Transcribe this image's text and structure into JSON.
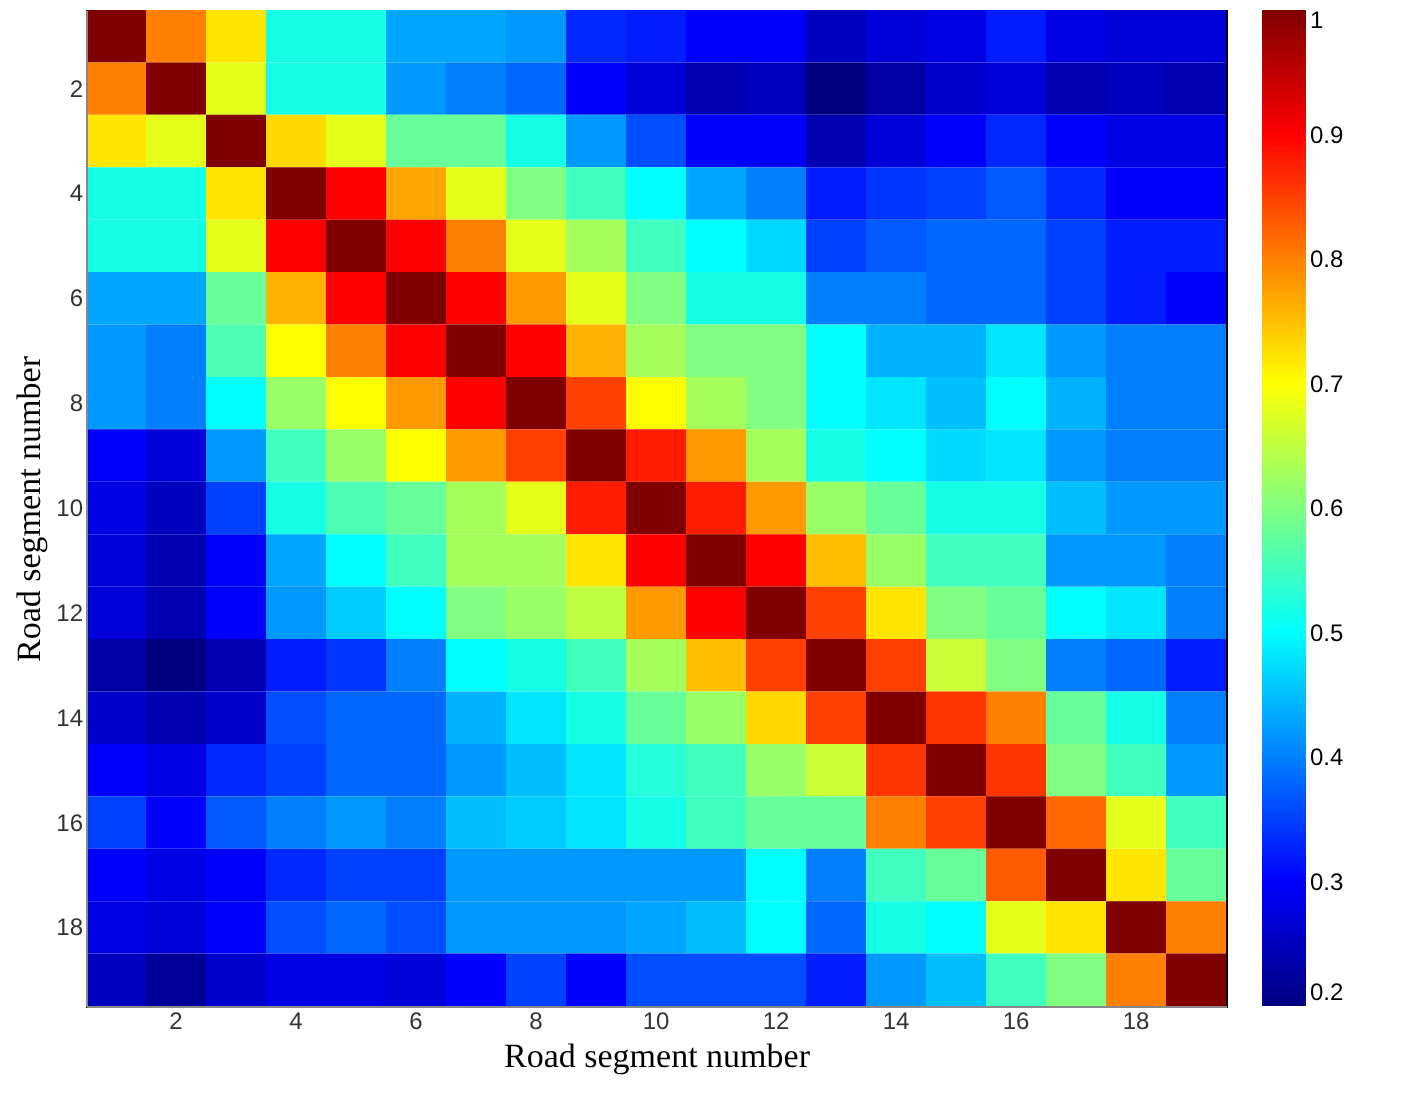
{
  "chart_data": {
    "type": "heatmap",
    "xlabel": "Road segment number",
    "ylabel": "Road segment number",
    "categories": [
      null,
      "2",
      null,
      "4",
      null,
      "6",
      null,
      "8",
      null,
      "10",
      null,
      "12",
      null,
      "14",
      null,
      "16",
      null,
      "18",
      null
    ],
    "y_categories": [
      null,
      "2",
      null,
      "4",
      null,
      "6",
      null,
      "8",
      null,
      "10",
      null,
      "12",
      null,
      "14",
      null,
      "16",
      null,
      "18",
      null
    ],
    "cells": [
      [
        1,
        0.8,
        0.72,
        0.52,
        0.52,
        0.43,
        0.43,
        0.42,
        0.33,
        0.32,
        0.3,
        0.3,
        0.25,
        0.27,
        0.28,
        0.32,
        0.28,
        0.27,
        0.27
      ],
      [
        0.8,
        1,
        0.68,
        0.52,
        0.52,
        0.42,
        0.4,
        0.38,
        0.3,
        0.27,
        0.24,
        0.25,
        0.2,
        0.23,
        0.26,
        0.27,
        0.24,
        0.25,
        0.24
      ],
      [
        0.72,
        0.68,
        1,
        0.73,
        0.68,
        0.58,
        0.58,
        0.52,
        0.42,
        0.36,
        0.3,
        0.3,
        0.24,
        0.27,
        0.3,
        0.33,
        0.3,
        0.28,
        0.28
      ],
      [
        0.52,
        0.52,
        0.72,
        1,
        0.9,
        0.77,
        0.68,
        0.6,
        0.55,
        0.5,
        0.43,
        0.4,
        0.32,
        0.34,
        0.35,
        0.37,
        0.33,
        0.3,
        0.3
      ],
      [
        0.52,
        0.52,
        0.68,
        0.9,
        1,
        0.9,
        0.8,
        0.68,
        0.63,
        0.55,
        0.5,
        0.47,
        0.35,
        0.37,
        0.38,
        0.38,
        0.35,
        0.32,
        0.32
      ],
      [
        0.43,
        0.43,
        0.58,
        0.76,
        0.9,
        1,
        0.9,
        0.78,
        0.68,
        0.6,
        0.52,
        0.52,
        0.4,
        0.4,
        0.38,
        0.38,
        0.35,
        0.32,
        0.3
      ],
      [
        0.42,
        0.4,
        0.56,
        0.7,
        0.8,
        0.9,
        1,
        0.9,
        0.76,
        0.63,
        0.6,
        0.6,
        0.5,
        0.44,
        0.44,
        0.48,
        0.42,
        0.4,
        0.4
      ],
      [
        0.42,
        0.4,
        0.5,
        0.62,
        0.7,
        0.78,
        0.9,
        1,
        0.85,
        0.7,
        0.63,
        0.6,
        0.5,
        0.48,
        0.45,
        0.5,
        0.44,
        0.4,
        0.4
      ],
      [
        0.3,
        0.27,
        0.42,
        0.55,
        0.62,
        0.7,
        0.78,
        0.85,
        1,
        0.88,
        0.78,
        0.63,
        0.52,
        0.5,
        0.47,
        0.48,
        0.42,
        0.4,
        0.4
      ],
      [
        0.28,
        0.25,
        0.35,
        0.52,
        0.56,
        0.58,
        0.63,
        0.68,
        0.88,
        1,
        0.88,
        0.78,
        0.62,
        0.58,
        0.52,
        0.52,
        0.45,
        0.42,
        0.42
      ],
      [
        0.27,
        0.24,
        0.3,
        0.43,
        0.5,
        0.55,
        0.63,
        0.63,
        0.72,
        0.9,
        1,
        0.9,
        0.75,
        0.62,
        0.55,
        0.55,
        0.42,
        0.42,
        0.4
      ],
      [
        0.27,
        0.24,
        0.3,
        0.42,
        0.46,
        0.5,
        0.6,
        0.62,
        0.65,
        0.78,
        0.9,
        1,
        0.85,
        0.72,
        0.6,
        0.58,
        0.5,
        0.48,
        0.4
      ],
      [
        0.23,
        0.2,
        0.24,
        0.32,
        0.34,
        0.4,
        0.5,
        0.52,
        0.55,
        0.63,
        0.75,
        0.85,
        1,
        0.85,
        0.66,
        0.6,
        0.4,
        0.38,
        0.32
      ],
      [
        0.26,
        0.24,
        0.26,
        0.36,
        0.38,
        0.38,
        0.44,
        0.48,
        0.52,
        0.58,
        0.62,
        0.73,
        0.85,
        1,
        0.86,
        0.8,
        0.58,
        0.52,
        0.4
      ],
      [
        0.3,
        0.28,
        0.33,
        0.35,
        0.38,
        0.38,
        0.42,
        0.45,
        0.48,
        0.53,
        0.55,
        0.62,
        0.66,
        0.86,
        1,
        0.86,
        0.6,
        0.55,
        0.42
      ],
      [
        0.35,
        0.3,
        0.37,
        0.4,
        0.42,
        0.4,
        0.45,
        0.46,
        0.48,
        0.52,
        0.55,
        0.58,
        0.58,
        0.8,
        0.85,
        1,
        0.82,
        0.68,
        0.55
      ],
      [
        0.3,
        0.28,
        0.3,
        0.33,
        0.35,
        0.35,
        0.42,
        0.42,
        0.42,
        0.42,
        0.42,
        0.5,
        0.4,
        0.55,
        0.58,
        0.83,
        1,
        0.72,
        0.58
      ],
      [
        0.28,
        0.27,
        0.3,
        0.36,
        0.38,
        0.36,
        0.42,
        0.42,
        0.42,
        0.43,
        0.45,
        0.5,
        0.38,
        0.52,
        0.5,
        0.68,
        0.72,
        1,
        0.8
      ],
      [
        0.25,
        0.22,
        0.26,
        0.28,
        0.28,
        0.27,
        0.3,
        0.35,
        0.3,
        0.36,
        0.36,
        0.36,
        0.32,
        0.42,
        0.45,
        0.55,
        0.6,
        0.8,
        1
      ]
    ],
    "clim": [
      0.2,
      1
    ],
    "cticks": [
      0.2,
      0.3,
      0.4,
      0.5,
      0.6,
      0.7,
      0.8,
      0.9,
      1
    ]
  }
}
